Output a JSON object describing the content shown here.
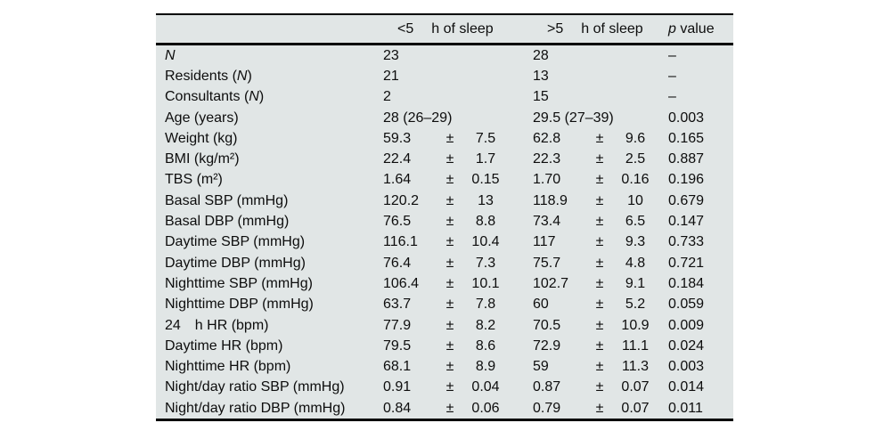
{
  "table": {
    "colors": {
      "page_bg": "#ffffff",
      "band_bg": "#e1e6e6",
      "rule": "#000000",
      "text": "#0d0d0d"
    },
    "header": {
      "group1_threshold": "<5",
      "group1_unit": "h of sleep",
      "group2_threshold": ">5",
      "group2_unit": "h of sleep",
      "p_symbol": "p",
      "p_rest": " value"
    },
    "rows": [
      {
        "pre": "",
        "it": "N",
        "post": "",
        "v1": "23",
        "pm1": "",
        "sd1": "",
        "v2": "28",
        "pm2": "",
        "sd2": "",
        "p": "–"
      },
      {
        "pre": "Residents (",
        "it": "N",
        "post": ")",
        "v1": "21",
        "pm1": "",
        "sd1": "",
        "v2": "13",
        "pm2": "",
        "sd2": "",
        "p": "–"
      },
      {
        "pre": "Consultants (",
        "it": "N",
        "post": ")",
        "v1": "2",
        "pm1": "",
        "sd1": "",
        "v2": "15",
        "pm2": "",
        "sd2": "",
        "p": "–"
      },
      {
        "pre": "Age (years)",
        "it": "",
        "post": "",
        "v1": "28 (26–29)",
        "pm1": "",
        "sd1": "",
        "v2": "29.5 (27–39)",
        "pm2": "",
        "sd2": "",
        "p": "0.003"
      },
      {
        "pre": "Weight (kg)",
        "it": "",
        "post": "",
        "v1": "59.3",
        "pm1": "±",
        "sd1": "7.5",
        "v2": "62.8",
        "pm2": "±",
        "sd2": "9.6",
        "p": "0.165"
      },
      {
        "pre": "BMI (kg/m²)",
        "it": "",
        "post": "",
        "v1": "22.4",
        "pm1": "±",
        "sd1": "1.7",
        "v2": "22.3",
        "pm2": "±",
        "sd2": "2.5",
        "p": "0.887"
      },
      {
        "pre": "TBS (m²)",
        "it": "",
        "post": "",
        "v1": "1.64",
        "pm1": "±",
        "sd1": "0.15",
        "v2": "1.70",
        "pm2": "±",
        "sd2": "0.16",
        "p": "0.196"
      },
      {
        "pre": "Basal SBP (mmHg)",
        "it": "",
        "post": "",
        "v1": "120.2",
        "pm1": "±",
        "sd1": "13",
        "v2": "118.9",
        "pm2": "±",
        "sd2": "10",
        "p": "0.679"
      },
      {
        "pre": "Basal DBP (mmHg)",
        "it": "",
        "post": "",
        "v1": "76.5",
        "pm1": "±",
        "sd1": "8.8",
        "v2": "73.4",
        "pm2": "±",
        "sd2": "6.5",
        "p": "0.147"
      },
      {
        "pre": "Daytime SBP (mmHg)",
        "it": "",
        "post": "",
        "v1": "116.1",
        "pm1": "±",
        "sd1": "10.4",
        "v2": "117",
        "pm2": "±",
        "sd2": "9.3",
        "p": "0.733"
      },
      {
        "pre": "Daytime DBP (mmHg)",
        "it": "",
        "post": "",
        "v1": "76.4",
        "pm1": "±",
        "sd1": "7.3",
        "v2": "75.7",
        "pm2": "±",
        "sd2": "4.8",
        "p": "0.721"
      },
      {
        "pre": "Nighttime SBP (mmHg)",
        "it": "",
        "post": "",
        "v1": "106.4",
        "pm1": "±",
        "sd1": "10.1",
        "v2": "102.7",
        "pm2": "±",
        "sd2": "9.1",
        "p": "0.184"
      },
      {
        "pre": "Nighttime DBP (mmHg)",
        "it": "",
        "post": "",
        "v1": "63.7",
        "pm1": "±",
        "sd1": "7.8",
        "v2": "60",
        "pm2": "±",
        "sd2": "5.2",
        "p": "0.059"
      },
      {
        "pre": "24  h HR (bpm)",
        "it": "",
        "post": "",
        "v1": "77.9",
        "pm1": "±",
        "sd1": "8.2",
        "v2": "70.5",
        "pm2": "±",
        "sd2": "10.9",
        "p": "0.009"
      },
      {
        "pre": "Daytime HR (bpm)",
        "it": "",
        "post": "",
        "v1": "79.5",
        "pm1": "±",
        "sd1": "8.6",
        "v2": "72.9",
        "pm2": "±",
        "sd2": "11.1",
        "p": "0.024"
      },
      {
        "pre": "Nighttime HR (bpm)",
        "it": "",
        "post": "",
        "v1": "68.1",
        "pm1": "±",
        "sd1": "8.9",
        "v2": "59",
        "pm2": "±",
        "sd2": "11.3",
        "p": "0.003"
      },
      {
        "pre": "Night/day ratio SBP (mmHg)",
        "it": "",
        "post": "",
        "v1": "0.91",
        "pm1": "±",
        "sd1": "0.04",
        "v2": "0.87",
        "pm2": "±",
        "sd2": "0.07",
        "p": "0.014"
      },
      {
        "pre": "Night/day ratio DBP (mmHg)",
        "it": "",
        "post": "",
        "v1": "0.84",
        "pm1": "±",
        "sd1": "0.06",
        "v2": "0.79",
        "pm2": "±",
        "sd2": "0.07",
        "p": "0.011"
      }
    ]
  }
}
